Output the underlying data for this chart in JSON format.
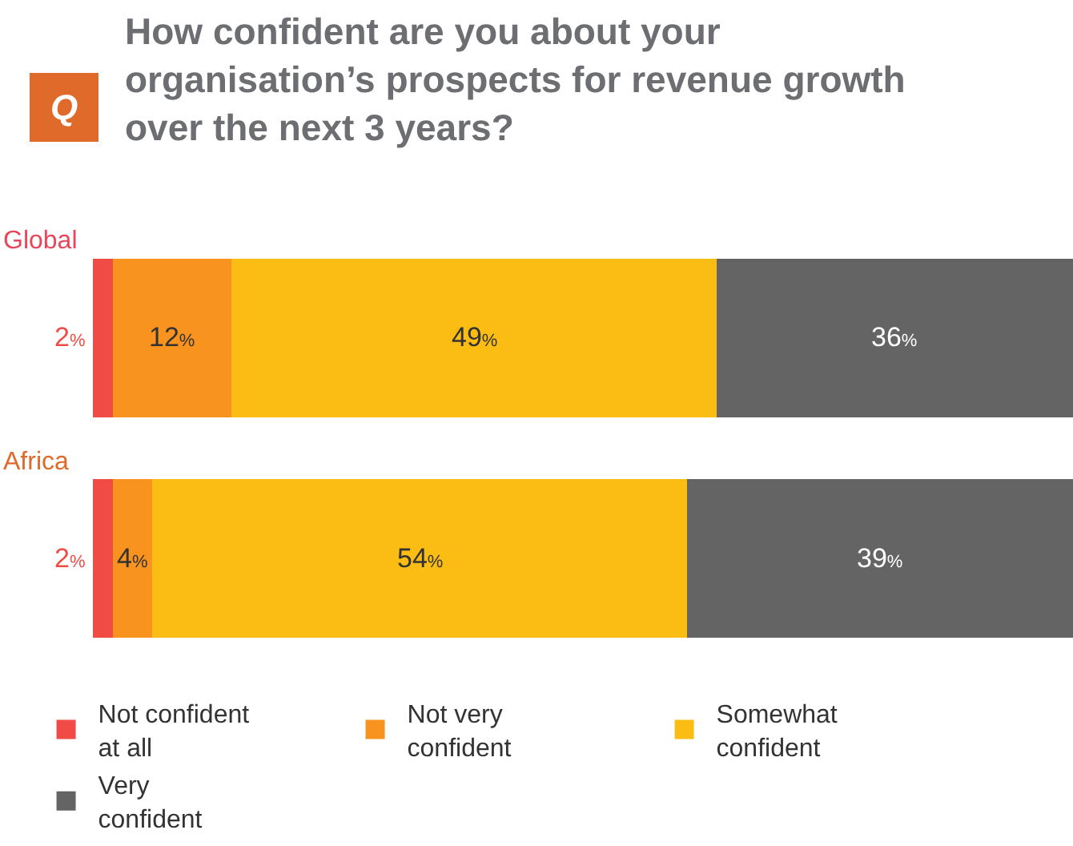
{
  "chart_data": {
    "type": "bar",
    "orientation": "horizontal",
    "stacked": true,
    "title": "How confident are you about your organisation’s prospects for revenue growth over the next 3 years?",
    "annotations": [
      "Q"
    ],
    "categories": [
      "Global",
      "Africa"
    ],
    "xlim": [
      0,
      99
    ],
    "series": [
      {
        "name": "Not confident at all",
        "color": "#f04c45",
        "values": [
          2,
          2
        ],
        "value_labels": [
          "2%",
          "2%"
        ]
      },
      {
        "name": "Not very confident",
        "color": "#f7931e",
        "values": [
          12,
          4
        ],
        "value_labels": [
          "12%",
          "4%"
        ]
      },
      {
        "name": "Somewhat confident",
        "color": "#fbbc13",
        "values": [
          49,
          54
        ],
        "value_labels": [
          "49%",
          "54%"
        ]
      },
      {
        "name": "Very confident",
        "color": "#646464",
        "values": [
          36,
          39
        ],
        "value_labels": [
          "36%",
          "39%"
        ]
      }
    ],
    "legend": "bottom",
    "tick_labels": false
  }
}
